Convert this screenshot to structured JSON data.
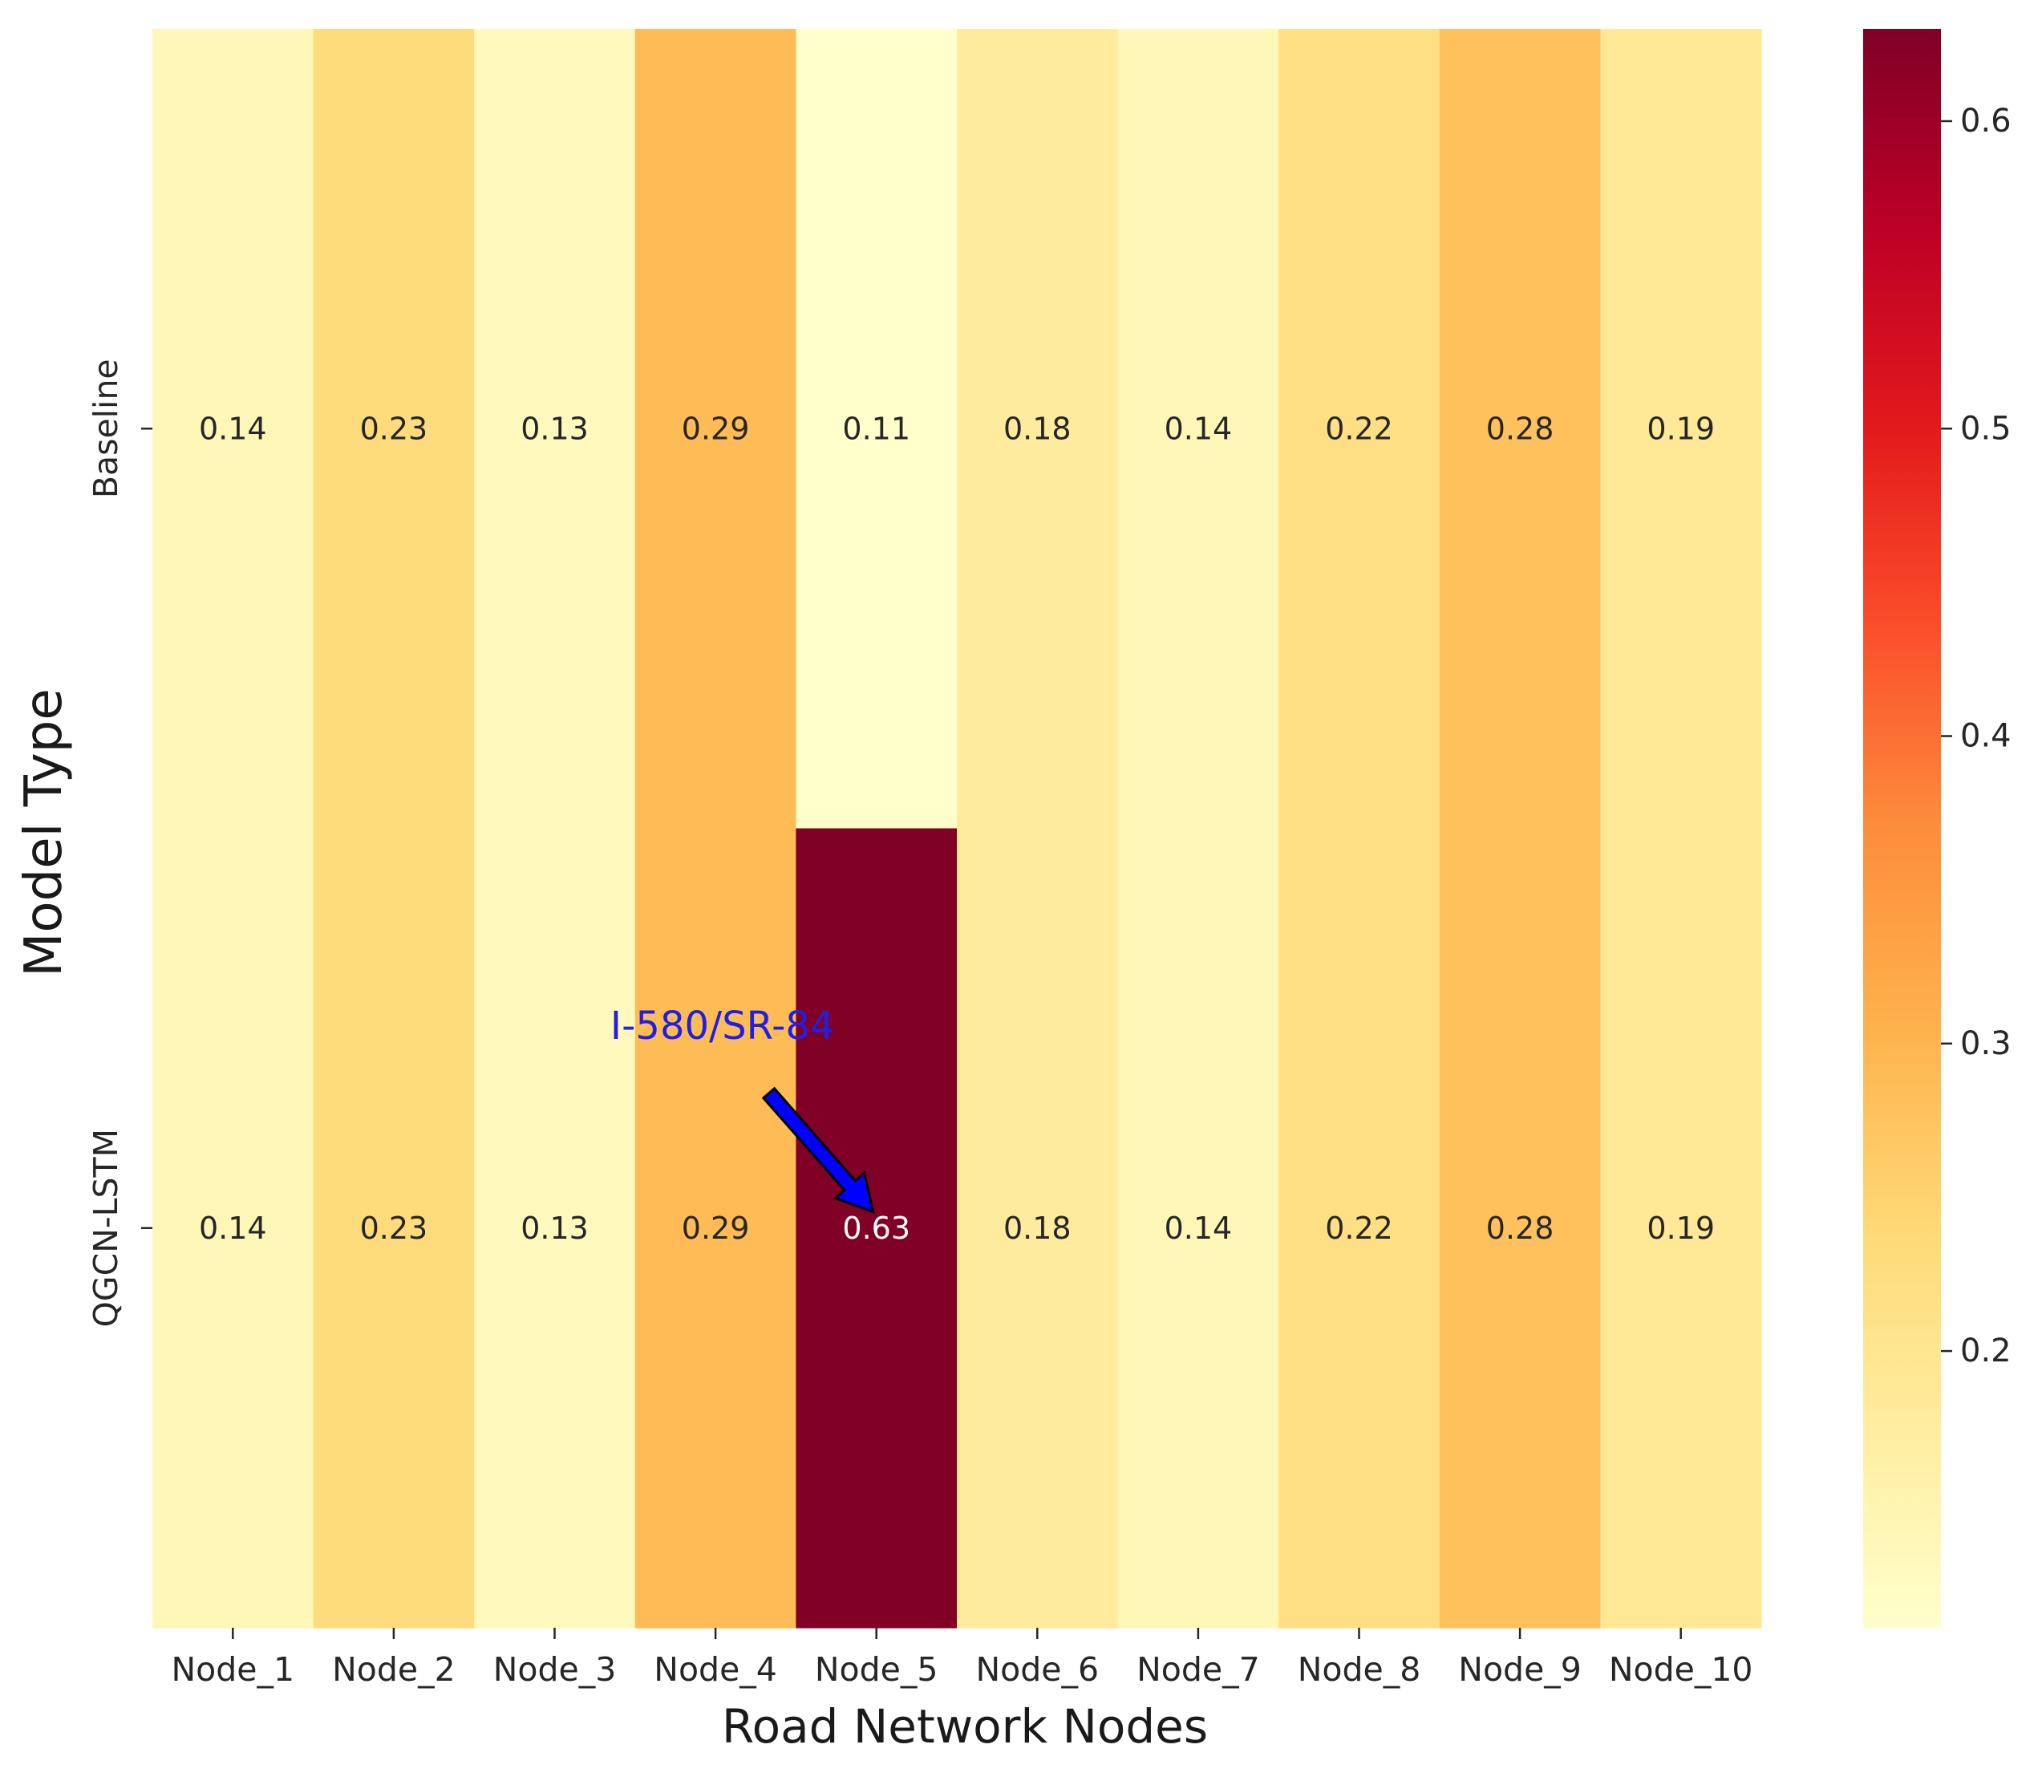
{
  "chart_data": {
    "type": "heatmap",
    "title": "",
    "xlabel": "Road Network Nodes",
    "ylabel": "Model Type",
    "x_categories": [
      "Node_1",
      "Node_2",
      "Node_3",
      "Node_4",
      "Node_5",
      "Node_6",
      "Node_7",
      "Node_8",
      "Node_9",
      "Node_10"
    ],
    "y_categories": [
      "Baseline",
      "QGCN-LSTM"
    ],
    "values": [
      [
        0.14,
        0.23,
        0.13,
        0.29,
        0.11,
        0.18,
        0.14,
        0.22,
        0.28,
        0.19
      ],
      [
        0.14,
        0.23,
        0.13,
        0.29,
        0.63,
        0.18,
        0.14,
        0.22,
        0.28,
        0.19
      ]
    ],
    "value_labels": [
      [
        "0.14",
        "0.23",
        "0.13",
        "0.29",
        "0.11",
        "0.18",
        "0.14",
        "0.22",
        "0.28",
        "0.19"
      ],
      [
        "0.14",
        "0.23",
        "0.13",
        "0.29",
        "0.63",
        "0.18",
        "0.14",
        "0.22",
        "0.28",
        "0.19"
      ]
    ],
    "colormap": "YlOrRd",
    "colormap_stops": [
      "#ffffcc",
      "#ffeda0",
      "#fed976",
      "#feb24c",
      "#fd8d3c",
      "#fc4e2a",
      "#e31a1c",
      "#bd0026",
      "#800026"
    ],
    "vmin": 0.11,
    "vmax": 0.63,
    "colorbar": {
      "ticks": [
        0.2,
        0.3,
        0.4,
        0.5,
        0.6
      ],
      "tick_labels": [
        "0.2",
        "0.3",
        "0.4",
        "0.5",
        "0.6"
      ]
    },
    "annotation": {
      "text": "I-580/SR-84",
      "target_row": 1,
      "target_col": 4,
      "arrow_color": "#0000ff",
      "text_color": "#1f1fe6"
    }
  }
}
